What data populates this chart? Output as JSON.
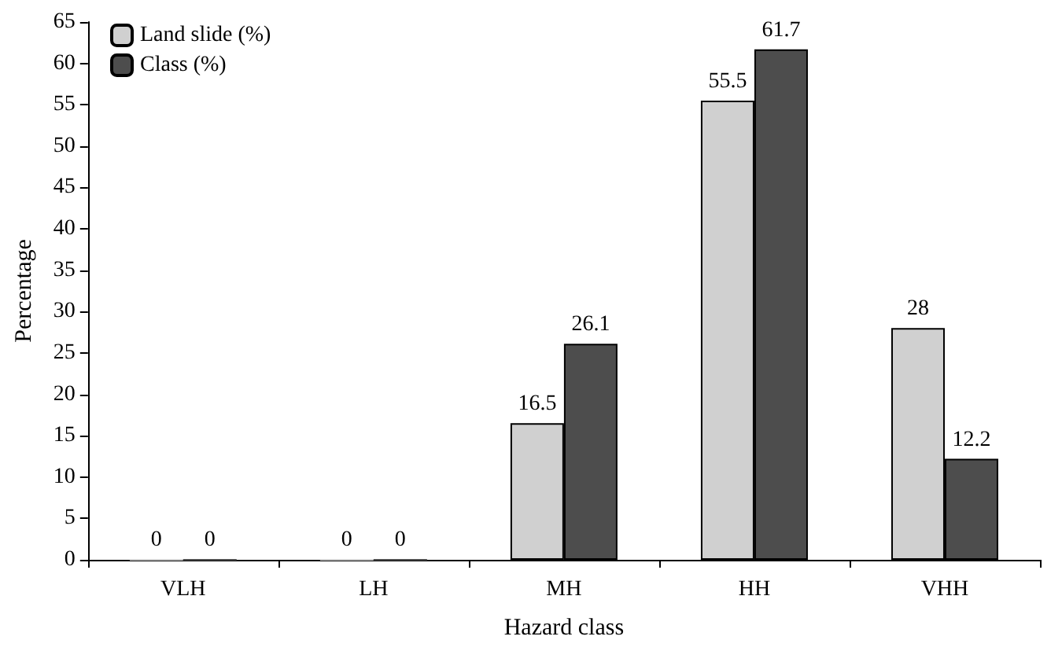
{
  "chart_data": {
    "type": "bar",
    "xlabel": "Hazard class",
    "ylabel": "Percentage",
    "categories": [
      "VLH",
      "LH",
      "MH",
      "HH",
      "VHH"
    ],
    "series": [
      {
        "name": "Land slide (%)",
        "color": "#d0d0d0",
        "values": [
          0,
          0,
          16.5,
          55.5,
          28
        ]
      },
      {
        "name": "Class (%)",
        "color": "#4d4d4d",
        "values": [
          0,
          0,
          26.1,
          61.7,
          12.2
        ]
      }
    ],
    "ylim": [
      0,
      65
    ],
    "yticks": [
      0,
      5,
      10,
      15,
      20,
      25,
      30,
      35,
      40,
      45,
      50,
      55,
      60,
      65
    ],
    "data_labels": true,
    "grid": false,
    "legend": "top left"
  }
}
